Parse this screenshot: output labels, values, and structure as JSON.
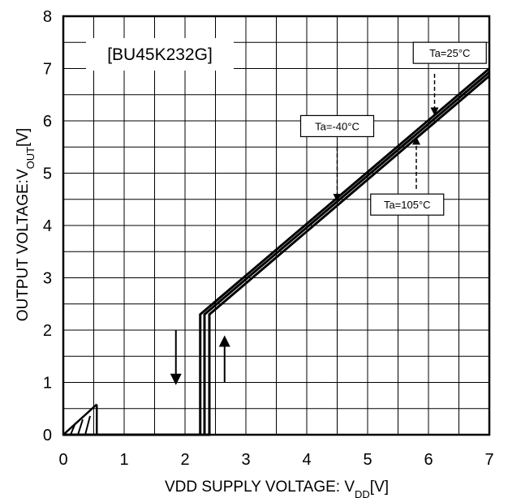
{
  "chart_data": {
    "type": "line",
    "title": "[BU45K232G]",
    "xlabel": {
      "main": "VDD SUPPLY VOLTAGE:  V",
      "sub": "DD",
      "unit": "[V]"
    },
    "ylabel": {
      "main": "OUTPUT VOLTAGE:V",
      "sub": "OUT",
      "unit": "[V]"
    },
    "xlim": [
      0,
      7
    ],
    "ylim": [
      0,
      8
    ],
    "xticks": [
      "0",
      "1",
      "2",
      "3",
      "4",
      "5",
      "6",
      "7"
    ],
    "yticks": [
      "0",
      "1",
      "2",
      "3",
      "4",
      "5",
      "6",
      "7",
      "8"
    ],
    "grid": true,
    "minor_grid": {
      "x_step": 0.5,
      "y_step": 0.5
    },
    "series": [
      {
        "name": "Ta=-40°C",
        "x": [
          0,
          2.25,
          2.25,
          7
        ],
        "y": [
          0,
          0,
          2.3,
          7.0
        ]
      },
      {
        "name": "Ta=25°C",
        "x": [
          0,
          2.32,
          2.32,
          7
        ],
        "y": [
          0,
          0,
          2.3,
          6.93
        ]
      },
      {
        "name": "Ta=105°C",
        "x": [
          0,
          2.4,
          2.4,
          7
        ],
        "y": [
          0,
          0,
          2.3,
          6.86
        ]
      }
    ],
    "low_vdd_region": {
      "x": [
        0,
        0.55
      ],
      "y": [
        0,
        0.58
      ]
    },
    "annotations": [
      {
        "text": "Ta=25°C",
        "box_at": [
          6.35,
          7.3
        ],
        "arrow_from": [
          6.1,
          6.9
        ],
        "arrow_to": [
          6.1,
          6.1
        ]
      },
      {
        "text": "Ta=-40°C",
        "box_at": [
          4.5,
          5.9
        ],
        "arrow_from": [
          4.5,
          5.5
        ],
        "arrow_to": [
          4.5,
          4.45
        ]
      },
      {
        "text": "Ta=105°C",
        "box_at": [
          5.65,
          4.4
        ],
        "arrow_from": [
          5.8,
          4.7
        ],
        "arrow_to": [
          5.8,
          5.7
        ]
      }
    ],
    "arrows": [
      {
        "direction": "down",
        "x": 1.85,
        "y_from": 2.0,
        "y_to": 0.95
      },
      {
        "direction": "up",
        "x": 2.65,
        "y_from": 1.0,
        "y_to": 1.9
      }
    ]
  }
}
